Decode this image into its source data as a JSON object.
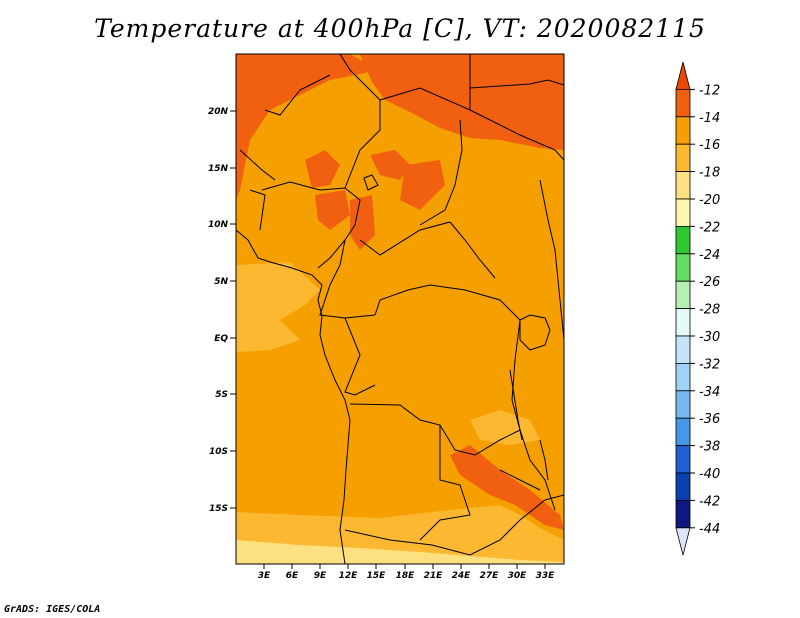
{
  "title": "Temperature at 400hPa [C], VT: 2020082115",
  "credit": "GrADS: IGES/COLA",
  "map": {
    "lat_ticks": [
      "20N",
      "15N",
      "10N",
      "5N",
      "EQ",
      "5S",
      "10S",
      "15S"
    ],
    "lon_ticks": [
      "3E",
      "6E",
      "9E",
      "12E",
      "15E",
      "18E",
      "21E",
      "24E",
      "27E",
      "30E",
      "33E"
    ]
  },
  "colorbar": {
    "labels": [
      "-12",
      "-14",
      "-16",
      "-18",
      "-20",
      "-22",
      "-24",
      "-26",
      "-28",
      "-30",
      "-32",
      "-34",
      "-36",
      "-38",
      "-40",
      "-42",
      "-44"
    ],
    "colors": [
      "#e84800",
      "#f06010",
      "#f5a000",
      "#fbb830",
      "#fde080",
      "#fff6b4",
      "#30c830",
      "#64dc64",
      "#b4f0b4",
      "#e4fafa",
      "#c4e4fa",
      "#a0d2f8",
      "#78b8f0",
      "#4896e8",
      "#2060d0",
      "#0840b0",
      "#101880",
      "#dce4fa"
    ]
  },
  "colors": {
    "field_main": "#f5a000",
    "field_warm": "#f06010",
    "field_cool": "#fbb830",
    "field_coolest": "#fde080"
  }
}
